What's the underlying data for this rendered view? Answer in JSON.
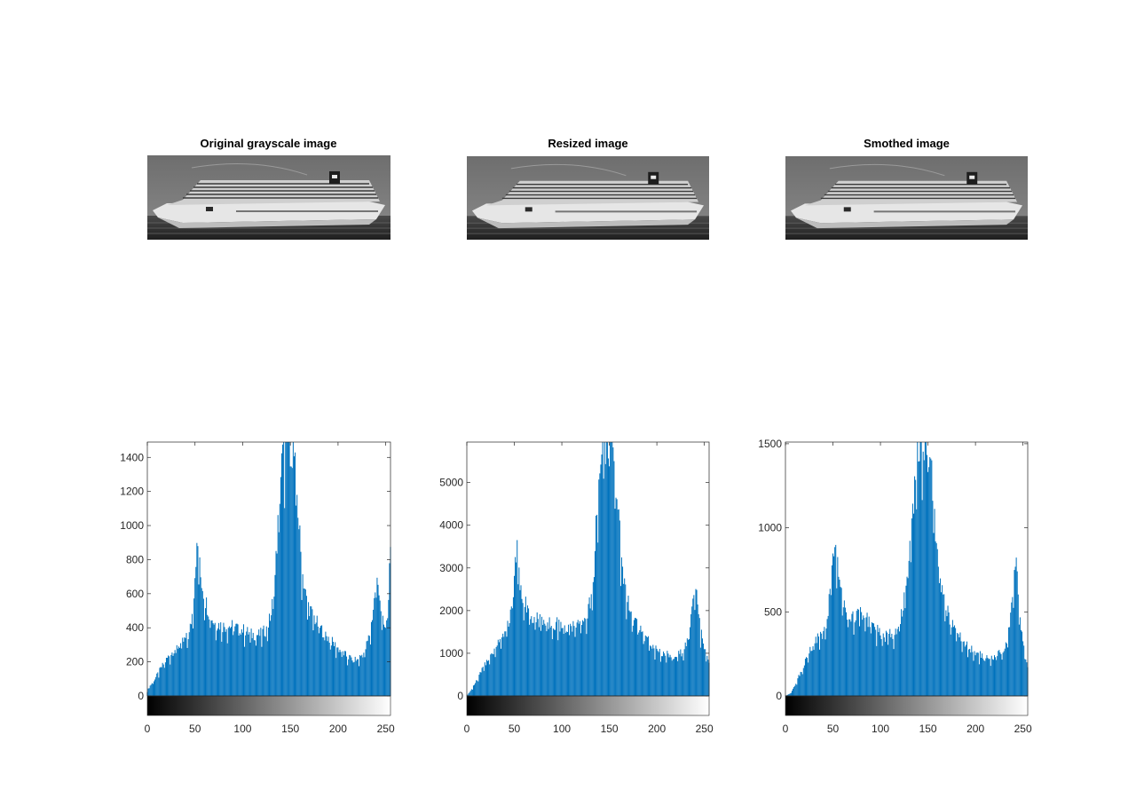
{
  "panels": [
    {
      "title": "Original grayscale image"
    },
    {
      "title": "Resized image"
    },
    {
      "title": "Smothed image"
    }
  ],
  "colors": {
    "bar": "#0072BD",
    "axis": "#262626"
  },
  "chart_data": [
    {
      "type": "bar",
      "title": "",
      "xlim": [
        0,
        255
      ],
      "ylim": [
        -110,
        1490
      ],
      "xticks": [
        0,
        50,
        100,
        150,
        200,
        250
      ],
      "yticks": [
        0,
        200,
        400,
        600,
        800,
        1000,
        1200,
        1400
      ],
      "colorbar": "grayscale 0-255",
      "profile": [
        [
          0,
          30
        ],
        [
          3,
          60
        ],
        [
          8,
          100
        ],
        [
          15,
          170
        ],
        [
          22,
          230
        ],
        [
          30,
          280
        ],
        [
          38,
          320
        ],
        [
          44,
          360
        ],
        [
          48,
          520
        ],
        [
          51,
          820
        ],
        [
          53,
          870
        ],
        [
          56,
          700
        ],
        [
          60,
          580
        ],
        [
          65,
          490
        ],
        [
          70,
          430
        ],
        [
          80,
          410
        ],
        [
          90,
          410
        ],
        [
          100,
          390
        ],
        [
          110,
          360
        ],
        [
          118,
          360
        ],
        [
          125,
          390
        ],
        [
          130,
          480
        ],
        [
          134,
          700
        ],
        [
          137,
          1000
        ],
        [
          140,
          1300
        ],
        [
          143,
          1450
        ],
        [
          146,
          1500
        ],
        [
          150,
          1520
        ],
        [
          154,
          1400
        ],
        [
          158,
          1100
        ],
        [
          162,
          750
        ],
        [
          167,
          560
        ],
        [
          172,
          490
        ],
        [
          180,
          410
        ],
        [
          190,
          340
        ],
        [
          200,
          280
        ],
        [
          210,
          230
        ],
        [
          220,
          210
        ],
        [
          228,
          260
        ],
        [
          234,
          380
        ],
        [
          238,
          560
        ],
        [
          240,
          680
        ],
        [
          243,
          640
        ],
        [
          246,
          450
        ],
        [
          250,
          380
        ],
        [
          253,
          620
        ],
        [
          255,
          800
        ]
      ]
    },
    {
      "type": "bar",
      "title": "",
      "xlim": [
        0,
        255
      ],
      "ylim": [
        -480,
        5950
      ],
      "xticks": [
        0,
        50,
        100,
        150,
        200,
        250
      ],
      "yticks": [
        0,
        1000,
        2000,
        3000,
        4000,
        5000
      ],
      "colorbar": "grayscale 0-255",
      "profile": [
        [
          0,
          0
        ],
        [
          4,
          120
        ],
        [
          10,
          350
        ],
        [
          18,
          700
        ],
        [
          26,
          1000
        ],
        [
          34,
          1300
        ],
        [
          42,
          1600
        ],
        [
          46,
          1900
        ],
        [
          49,
          2500
        ],
        [
          51,
          3300
        ],
        [
          53,
          3500
        ],
        [
          56,
          2700
        ],
        [
          60,
          2300
        ],
        [
          65,
          2000
        ],
        [
          72,
          1800
        ],
        [
          82,
          1750
        ],
        [
          92,
          1700
        ],
        [
          102,
          1650
        ],
        [
          112,
          1600
        ],
        [
          120,
          1650
        ],
        [
          126,
          1800
        ],
        [
          130,
          2200
        ],
        [
          134,
          3000
        ],
        [
          137,
          4500
        ],
        [
          140,
          5500
        ],
        [
          143,
          5900
        ],
        [
          147,
          6000
        ],
        [
          151,
          6000
        ],
        [
          155,
          5500
        ],
        [
          159,
          4500
        ],
        [
          163,
          3000
        ],
        [
          168,
          2300
        ],
        [
          175,
          1800
        ],
        [
          185,
          1450
        ],
        [
          195,
          1200
        ],
        [
          205,
          1020
        ],
        [
          215,
          940
        ],
        [
          222,
          950
        ],
        [
          228,
          1050
        ],
        [
          233,
          1400
        ],
        [
          237,
          2000
        ],
        [
          240,
          2650
        ],
        [
          243,
          2300
        ],
        [
          246,
          1500
        ],
        [
          250,
          1150
        ],
        [
          255,
          850
        ]
      ]
    },
    {
      "type": "bar",
      "title": "",
      "xlim": [
        0,
        255
      ],
      "ylim": [
        -125,
        1510
      ],
      "xticks": [
        0,
        50,
        100,
        150,
        200,
        250
      ],
      "yticks": [
        0,
        500,
        1000,
        1500
      ],
      "colorbar": "grayscale 0-255",
      "profile": [
        [
          0,
          0
        ],
        [
          5,
          15
        ],
        [
          10,
          60
        ],
        [
          18,
          170
        ],
        [
          26,
          270
        ],
        [
          34,
          340
        ],
        [
          42,
          390
        ],
        [
          47,
          600
        ],
        [
          50,
          880
        ],
        [
          53,
          860
        ],
        [
          56,
          720
        ],
        [
          60,
          560
        ],
        [
          66,
          470
        ],
        [
          74,
          460
        ],
        [
          80,
          510
        ],
        [
          86,
          460
        ],
        [
          95,
          400
        ],
        [
          105,
          350
        ],
        [
          115,
          380
        ],
        [
          121,
          460
        ],
        [
          126,
          600
        ],
        [
          131,
          850
        ],
        [
          135,
          1150
        ],
        [
          138,
          1400
        ],
        [
          141,
          1500
        ],
        [
          145,
          1550
        ],
        [
          149,
          1550
        ],
        [
          153,
          1400
        ],
        [
          157,
          1050
        ],
        [
          161,
          800
        ],
        [
          166,
          580
        ],
        [
          172,
          480
        ],
        [
          180,
          380
        ],
        [
          190,
          300
        ],
        [
          200,
          260
        ],
        [
          210,
          230
        ],
        [
          220,
          235
        ],
        [
          228,
          260
        ],
        [
          233,
          330
        ],
        [
          237,
          480
        ],
        [
          240,
          700
        ],
        [
          242,
          810
        ],
        [
          244,
          700
        ],
        [
          247,
          450
        ],
        [
          250,
          300
        ],
        [
          255,
          160
        ]
      ]
    }
  ]
}
